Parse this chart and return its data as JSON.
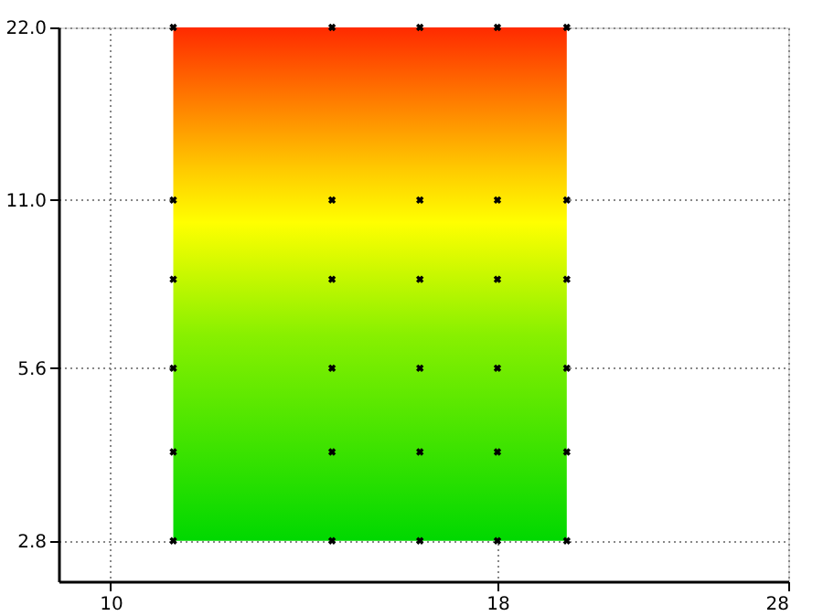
{
  "chart_data": {
    "type": "scatter",
    "x": [
      11,
      14,
      16,
      18,
      20,
      11,
      14,
      16,
      18,
      20,
      11,
      14,
      16,
      18,
      20,
      11,
      14,
      16,
      18,
      20,
      11,
      14,
      16,
      18,
      20,
      11,
      14,
      16,
      18,
      20
    ],
    "values": [
      2.8,
      2.8,
      2.8,
      2.8,
      2.8,
      4,
      4,
      4,
      4,
      4,
      5.6,
      5.6,
      5.6,
      5.6,
      5.6,
      8,
      8,
      8,
      8,
      8,
      11,
      11,
      11,
      11,
      11,
      22,
      22,
      22,
      22,
      22
    ],
    "color": "#000000",
    "marker": "cross",
    "log": "xy",
    "grid": true,
    "xlim": [
      9.24,
      28
    ],
    "xticks": [
      10,
      18,
      28
    ],
    "ylim": [
      2.38,
      22
    ],
    "yticks": [
      {
        "value": 2.8,
        "label": "2.8"
      },
      {
        "value": 5.6,
        "label": "5.6"
      },
      {
        "value": 11,
        "label": "11.0"
      },
      {
        "value": 22,
        "label": "22.0"
      }
    ]
  }
}
